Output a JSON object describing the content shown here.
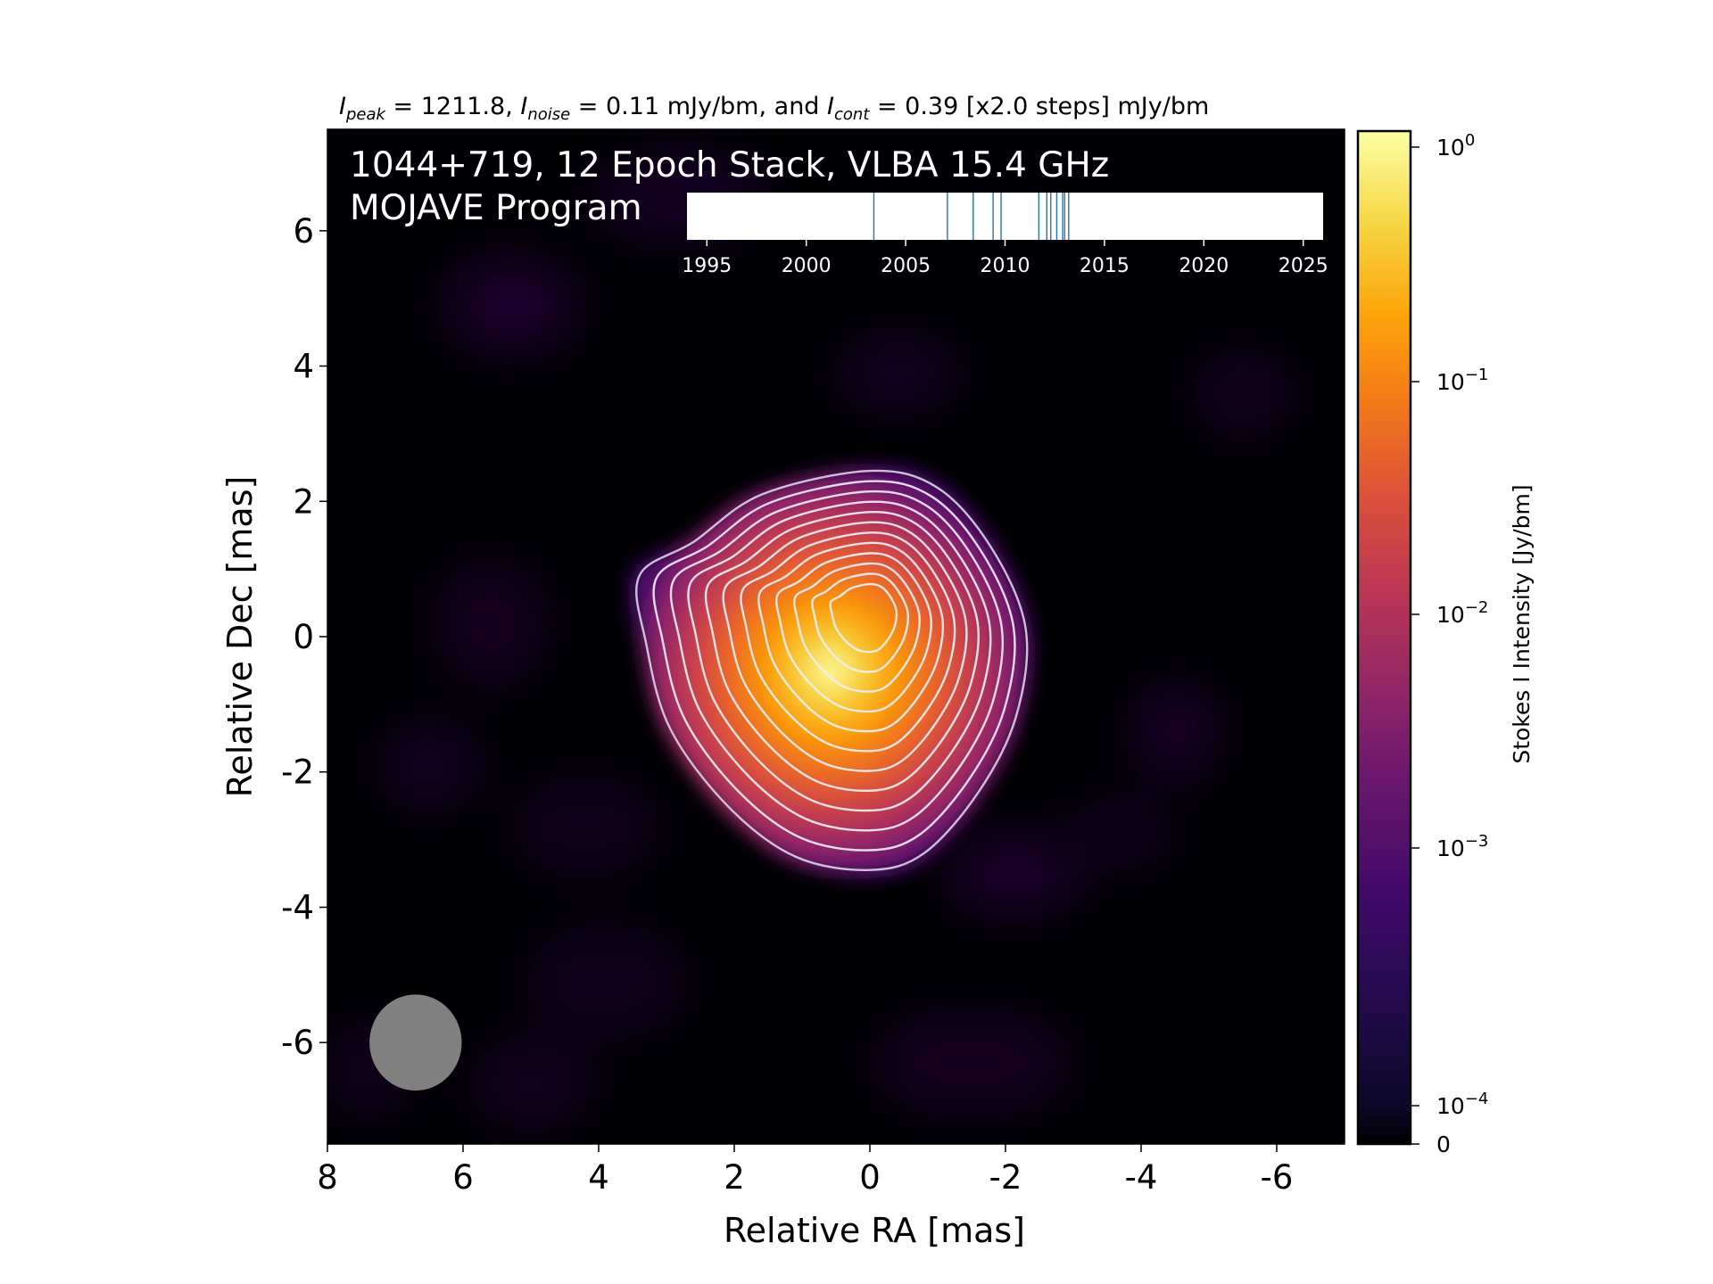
{
  "chart_data": {
    "type": "heatmap",
    "title_parts": {
      "peak_sym": "I",
      "peak_sub": "peak",
      "peak_val": " = 1211.8, ",
      "noise_sym": "I",
      "noise_sub": "noise",
      "noise_val": " = 0.11 mJy/bm, and ",
      "cont_sym": "I",
      "cont_sub": "cont",
      "cont_val": " = 0.39 [x2.0 steps] mJy/bm"
    },
    "overlay_line1": "1044+719, 12 Epoch Stack, VLBA 15.4 GHz",
    "overlay_line2": "MOJAVE Program",
    "xlabel": "Relative RA [mas]",
    "ylabel": "Relative Dec [mas]",
    "xlim": [
      8,
      -7
    ],
    "ylim": [
      -7.5,
      7.5
    ],
    "xticks": [
      8,
      6,
      4,
      2,
      0,
      -2,
      -4,
      -6
    ],
    "yticks": [
      -6,
      -4,
      -2,
      0,
      2,
      4,
      6
    ],
    "colorbar": {
      "label": "Stokes I Intensity [Jy/bm]",
      "colormap": "inferno",
      "tick_labels": [
        {
          "base": "10",
          "exp": "0",
          "value": 1
        },
        {
          "base": "10",
          "exp": "−1",
          "value": 0.1
        },
        {
          "base": "10",
          "exp": "−2",
          "value": 0.01
        },
        {
          "base": "10",
          "exp": "−3",
          "value": 0.001
        },
        {
          "base": "10",
          "exp": "−4",
          "value": 0.0001
        },
        {
          "base": "0",
          "exp": "",
          "value": 0
        }
      ]
    },
    "peak_position": [
      0,
      0
    ],
    "contour_count": 12,
    "beam": {
      "center_ra": 6.7,
      "center_dec": -6.0,
      "color": "#808080"
    },
    "epoch_timeline": {
      "xlim": [
        1994,
        2026
      ],
      "ticks": [
        1995,
        2000,
        2005,
        2010,
        2015,
        2020,
        2025
      ],
      "epochs": [
        2003.4,
        2007.1,
        2008.4,
        2009.4,
        2009.8,
        2011.7,
        2012.1,
        2012.3,
        2012.6,
        2012.9,
        2013.0,
        2013.2
      ],
      "line_color": "#1f77b4"
    }
  }
}
